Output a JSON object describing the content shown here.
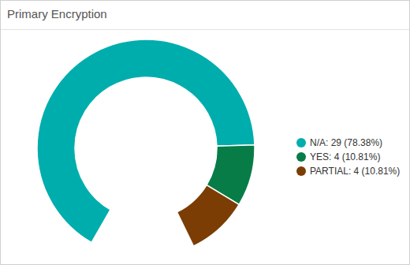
{
  "chart_data": {
    "type": "donut",
    "title": "Primary Encryption",
    "values": [
      29,
      4,
      4
    ],
    "value_labels": [
      "N/A: 29 (78.38%)",
      "YES: 4 (10.81%)",
      "PARTIAL: 4 (10.81%)"
    ],
    "colors": [
      "#00adad",
      "#077c47",
      "#7b3d03"
    ],
    "legend": "right"
  }
}
